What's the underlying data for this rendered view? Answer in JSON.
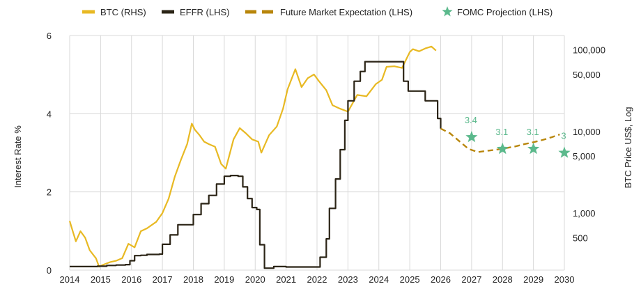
{
  "chart_data": {
    "type": "line",
    "legend": [
      {
        "name": "BTC (RHS)",
        "style": "solid",
        "color": "#e8b923"
      },
      {
        "name": "EFFR (LHS)",
        "style": "solid",
        "color": "#2b2416"
      },
      {
        "name": "Future Market Expectation (LHS)",
        "style": "dashed",
        "color": "#b8860b"
      },
      {
        "name": "FOMC Projection (LHS)",
        "style": "star",
        "color": "#5bb98c"
      }
    ],
    "ylabel_left": "Interest Rate %",
    "ylabel_right": "BTC Price US$, Log",
    "x_ticks": [
      "2014",
      "2015",
      "2016",
      "2017",
      "2018",
      "2019",
      "2020",
      "2021",
      "2022",
      "2023",
      "2024",
      "2025",
      "2026",
      "2027",
      "2028",
      "2029",
      "2030"
    ],
    "xlim": [
      2014,
      2030
    ],
    "ylim_left": [
      0,
      6
    ],
    "y_ticks_left": [
      "0",
      "2",
      "4",
      "6"
    ],
    "ylim_right_log": [
      200,
      150000
    ],
    "y_ticks_right": [
      {
        "label": "500",
        "value": 500
      },
      {
        "label": "1,000",
        "value": 1000
      },
      {
        "label": "5,000",
        "value": 5000
      },
      {
        "label": "10,000",
        "value": 10000
      },
      {
        "label": "50,000",
        "value": 50000
      },
      {
        "label": "100,000",
        "value": 100000
      }
    ],
    "series": {
      "effr": {
        "name": "EFFR (LHS)",
        "x": [
          2014.0,
          2014.3,
          2014.6,
          2014.9,
          2015.2,
          2015.5,
          2015.8,
          2015.95,
          2016.1,
          2016.3,
          2016.5,
          2016.9,
          2017.0,
          2017.25,
          2017.5,
          2017.75,
          2018.0,
          2018.25,
          2018.5,
          2018.75,
          2019.0,
          2019.2,
          2019.45,
          2019.6,
          2019.75,
          2019.9,
          2020.05,
          2020.15,
          2020.3,
          2020.6,
          2021.0,
          2021.5,
          2021.9,
          2022.1,
          2022.3,
          2022.4,
          2022.6,
          2022.75,
          2022.9,
          2023.0,
          2023.2,
          2023.4,
          2023.55,
          2024.7,
          2024.8,
          2024.95,
          2025.5,
          2025.9,
          2026.0
        ],
        "y": [
          0.09,
          0.09,
          0.09,
          0.1,
          0.12,
          0.13,
          0.14,
          0.24,
          0.37,
          0.38,
          0.4,
          0.41,
          0.66,
          0.9,
          1.16,
          1.16,
          1.42,
          1.7,
          1.91,
          2.2,
          2.4,
          2.42,
          2.4,
          2.13,
          1.83,
          1.6,
          1.55,
          0.65,
          0.05,
          0.09,
          0.08,
          0.08,
          0.08,
          0.33,
          0.8,
          1.58,
          2.33,
          3.08,
          3.83,
          4.33,
          4.83,
          5.08,
          5.33,
          5.33,
          4.83,
          4.58,
          4.33,
          3.88,
          3.62
        ]
      },
      "expectation": {
        "name": "Future Market Expectation (LHS)",
        "x": [
          2026.0,
          2026.3,
          2026.6,
          2026.9,
          2027.2,
          2027.5,
          2027.8,
          2028.1,
          2028.4,
          2028.7,
          2029.0,
          2029.3,
          2029.6,
          2029.85
        ],
        "y": [
          3.62,
          3.5,
          3.3,
          3.1,
          3.02,
          3.05,
          3.08,
          3.12,
          3.16,
          3.22,
          3.27,
          3.33,
          3.4,
          3.47
        ]
      },
      "btc": {
        "name": "BTC (RHS)",
        "x": [
          2014.0,
          2014.1,
          2014.2,
          2014.35,
          2014.5,
          2014.65,
          2014.85,
          2014.95,
          2015.05,
          2015.3,
          2015.5,
          2015.7,
          2015.9,
          2016.1,
          2016.3,
          2016.5,
          2016.8,
          2017.0,
          2017.2,
          2017.4,
          2017.6,
          2017.8,
          2017.95,
          2018.05,
          2018.2,
          2018.35,
          2018.5,
          2018.7,
          2018.9,
          2019.05,
          2019.3,
          2019.5,
          2019.7,
          2019.9,
          2020.1,
          2020.2,
          2020.45,
          2020.7,
          2020.9,
          2021.05,
          2021.3,
          2021.5,
          2021.7,
          2021.9,
          2022.05,
          2022.3,
          2022.5,
          2022.75,
          2023.0,
          2023.3,
          2023.6,
          2023.9,
          2024.1,
          2024.25,
          2024.5,
          2024.75,
          2025.0,
          2025.1,
          2025.3,
          2025.5,
          2025.7,
          2025.85
        ],
        "y": [
          800,
          600,
          450,
          600,
          500,
          350,
          280,
          220,
          230,
          250,
          260,
          280,
          420,
          380,
          600,
          650,
          780,
          1000,
          1500,
          2800,
          4500,
          7000,
          12500,
          10500,
          9000,
          7500,
          7000,
          6500,
          4000,
          3500,
          8000,
          11000,
          9500,
          8000,
          7500,
          5500,
          9000,
          11500,
          19000,
          33000,
          58000,
          35000,
          45000,
          50000,
          42000,
          32000,
          21000,
          19000,
          17500,
          28000,
          27000,
          38000,
          43000,
          62000,
          63000,
          60000,
          94000,
          102000,
          96000,
          104000,
          110000,
          98000
        ]
      }
    },
    "fomc_projection": [
      {
        "x": 2027,
        "y": 3.4,
        "label": "3.4"
      },
      {
        "x": 2028,
        "y": 3.1,
        "label": "3.1"
      },
      {
        "x": 2029,
        "y": 3.1,
        "label": "3.1"
      },
      {
        "x": 2030,
        "y": 3.0,
        "label": "3"
      }
    ]
  }
}
